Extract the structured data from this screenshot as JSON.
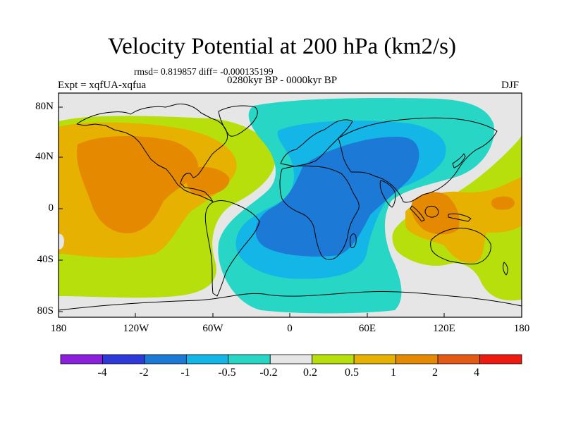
{
  "title": "Velocity Potential at 200 hPa (km2/s)",
  "stats": "rmsd= 0.819857 diff= -0.000135199",
  "subtitle": "0280kyr BP - 0000kyr BP",
  "expt": "Expt = xqfUA-xqfua",
  "season": "DJF",
  "axes": {
    "y_labels": [
      "80N",
      "40N",
      "0",
      "40S",
      "80S"
    ],
    "x_labels": [
      "180",
      "120W",
      "60W",
      "0",
      "60E",
      "120E",
      "180"
    ]
  },
  "colorbar": {
    "labels": [
      "-4",
      "-2",
      "-1",
      "-0.5",
      "-0.2",
      "0.2",
      "0.5",
      "1",
      "2",
      "4"
    ],
    "colors": [
      "#8c1fdc",
      "#2d3ad8",
      "#1c7ad6",
      "#13b6e6",
      "#28d6c6",
      "#e6e6e6",
      "#b7df0b",
      "#e6b100",
      "#e58a00",
      "#e25a13",
      "#ee1a10"
    ]
  },
  "map_colors": {
    "ocean_bg": "#e6e6e6",
    "pos_weak": "#b7df0b",
    "pos_mid": "#e6b100",
    "pos_strong": "#e58a00",
    "pos_vstrong": "#e25a13",
    "neg_weak": "#28d6c6",
    "neg_mid": "#13b6e6",
    "neg_strong": "#1c7ad6"
  }
}
